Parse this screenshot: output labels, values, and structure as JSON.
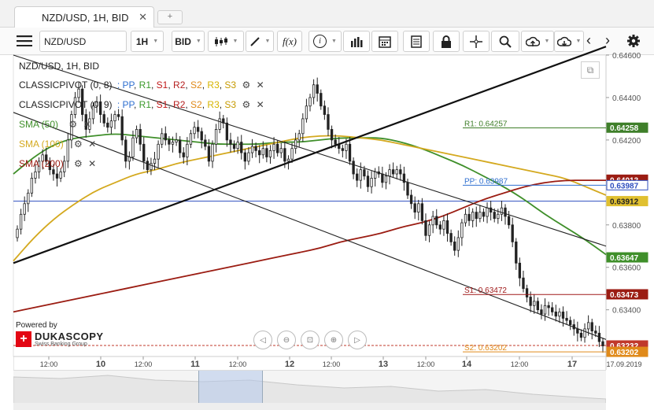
{
  "tab": {
    "title": "NZD/USD, 1H, BID",
    "close": "✕",
    "add": "+"
  },
  "toolbar": {
    "instrument": "NZD/USD",
    "period": "1H",
    "side": "BID",
    "fx_label": "f(x)",
    "info_label": "i"
  },
  "legend": {
    "title": "NZD/USD, 1H, BID",
    "pivots": [
      {
        "name": "CLASSICPIVOT (0, 8)",
        "sep": ":",
        "levels": [
          "PP",
          "R1",
          "S1",
          "R2",
          "S2",
          "R3",
          "S3"
        ]
      },
      {
        "name": "CLASSICPIVOT (0, 9)",
        "sep": ":",
        "levels": [
          "PP",
          "R1",
          "S1",
          "R2",
          "S2",
          "R3",
          "S3"
        ]
      }
    ],
    "smas": [
      {
        "name": "SMA (50)",
        "color": "#3f8f2a"
      },
      {
        "name": "SMA (100)",
        "color": "#d4a91f"
      },
      {
        "name": "SMA (200)",
        "color": "#9b1c12"
      }
    ],
    "level_colors": [
      "#2f6fd0",
      "#3a9a2a",
      "#c01a1a",
      "#b52020",
      "#e08a1a",
      "#d6b400",
      "#c69a00"
    ]
  },
  "branding": {
    "powered_by": "Powered by",
    "name": "DUKASCOPY",
    "sub": "Swiss Banking Group"
  },
  "chart_data": {
    "type": "candlestick",
    "instrument": "NZD/USD",
    "timeframe": "1H",
    "ylim": [
      0.6318,
      0.646
    ],
    "y_ticks": [
      "0.64600",
      "0.64400",
      "0.64200",
      "0.63800",
      "0.63600",
      "0.63400"
    ],
    "x_ticks": [
      "12:00",
      "10",
      "12:00",
      "11",
      "12:00",
      "12",
      "12:00",
      "13",
      "12:00",
      "14",
      "12:00",
      "17",
      "17.09.2019"
    ],
    "closes": [
      0.6378,
      0.6385,
      0.639,
      0.6395,
      0.6402,
      0.6405,
      0.641,
      0.6413,
      0.641,
      0.6406,
      0.6404,
      0.6402,
      0.6405,
      0.641,
      0.642,
      0.6432,
      0.644,
      0.6444,
      0.6432,
      0.6425,
      0.643,
      0.6436,
      0.6438,
      0.6432,
      0.6428,
      0.6426,
      0.6429,
      0.6432,
      0.6431,
      0.642,
      0.641,
      0.6412,
      0.6421,
      0.6425,
      0.6418,
      0.641,
      0.6406,
      0.6409,
      0.6411,
      0.6418,
      0.6423,
      0.642,
      0.6418,
      0.6419,
      0.642,
      0.6414,
      0.6412,
      0.6418,
      0.6423,
      0.6426,
      0.6424,
      0.642,
      0.6417,
      0.641,
      0.6418,
      0.6425,
      0.643,
      0.6428,
      0.642,
      0.6418,
      0.6416,
      0.6419,
      0.6414,
      0.641,
      0.6414,
      0.6417,
      0.6415,
      0.6413,
      0.6416,
      0.6412,
      0.6415,
      0.6418,
      0.6414,
      0.6416,
      0.641,
      0.6411,
      0.6416,
      0.642,
      0.6423,
      0.643,
      0.6436,
      0.644,
      0.6446,
      0.6442,
      0.6436,
      0.6432,
      0.6425,
      0.642,
      0.6418,
      0.6416,
      0.6415,
      0.6418,
      0.641,
      0.6404,
      0.6401,
      0.6406,
      0.6403,
      0.6398,
      0.6402,
      0.6405,
      0.6404,
      0.64,
      0.6403,
      0.6406,
      0.6404,
      0.6406,
      0.6404,
      0.64,
      0.6394,
      0.639,
      0.6386,
      0.639,
      0.6382,
      0.6375,
      0.638,
      0.6384,
      0.638,
      0.6378,
      0.6382,
      0.6376,
      0.6372,
      0.6368,
      0.6374,
      0.6381,
      0.6385,
      0.6382,
      0.6386,
      0.6383,
      0.6386,
      0.6384,
      0.6388,
      0.6386,
      0.6383,
      0.6385,
      0.6388,
      0.6384,
      0.638,
      0.6372,
      0.6362,
      0.6355,
      0.635,
      0.6346,
      0.6342,
      0.6344,
      0.634,
      0.6338,
      0.6342,
      0.6341,
      0.6339,
      0.6337,
      0.6339,
      0.6336,
      0.6335,
      0.6333,
      0.6331,
      0.6329,
      0.6327,
      0.6331,
      0.6334,
      0.633,
      0.6329,
      0.6325,
      0.6323
    ],
    "series": [
      {
        "name": "SMA (50)",
        "values": [
          0.6404,
          0.6412,
          0.6418,
          0.6421,
          0.6422,
          0.6423,
          0.6422,
          0.6421,
          0.642,
          0.6419,
          0.6418,
          0.6418,
          0.6418,
          0.6419,
          0.6419,
          0.642,
          0.6421,
          0.6421,
          0.6421,
          0.6419,
          0.6416,
          0.6412,
          0.6408,
          0.6403,
          0.6398,
          0.6392,
          0.6385,
          0.6379,
          0.6373,
          0.6366
        ]
      },
      {
        "name": "SMA (100)",
        "values": [
          0.6363,
          0.6374,
          0.6383,
          0.639,
          0.6396,
          0.64,
          0.6404,
          0.6406,
          0.6409,
          0.6411,
          0.6413,
          0.6415,
          0.6417,
          0.6419,
          0.6421,
          0.6422,
          0.6422,
          0.6421,
          0.642,
          0.6418,
          0.6416,
          0.6414,
          0.6412,
          0.641,
          0.6408,
          0.6406,
          0.6404,
          0.6402,
          0.6398,
          0.6394
        ]
      },
      {
        "name": "SMA (200)",
        "values": [
          0.6339,
          0.6341,
          0.6343,
          0.6345,
          0.6347,
          0.6349,
          0.6351,
          0.6353,
          0.6355,
          0.6357,
          0.6359,
          0.6361,
          0.6363,
          0.6365,
          0.6367,
          0.6369,
          0.6372,
          0.6374,
          0.6376,
          0.6379,
          0.6381,
          0.6384,
          0.6388,
          0.6392,
          0.6395,
          0.6398,
          0.64,
          0.6401,
          0.6401,
          0.6401
        ]
      }
    ],
    "trendlines": [
      {
        "name": "support",
        "from": 0.6362,
        "to": 0.6464
      },
      {
        "name": "channel-top",
        "from": 0.646,
        "to": 0.637
      },
      {
        "name": "channel-bottom",
        "from": 0.6433,
        "to": 0.6326
      }
    ],
    "levels": [
      {
        "label": "R1: 0.64257",
        "value": 0.64257,
        "color": "#3f7f2a"
      },
      {
        "label": "PP: 0.63987",
        "value": 0.63987,
        "color": "#2f6fd0"
      },
      {
        "label": "S1: 0.63472",
        "value": 0.63472,
        "color": "#a01a1a"
      },
      {
        "label": "S2: 0.63202",
        "value": 0.63202,
        "color": "#e08a1a"
      }
    ],
    "price_lines": [
      {
        "value": 0.63912,
        "color": "#2f4fbf"
      },
      {
        "value": 0.63232,
        "color": "#c0392b",
        "dashed": true
      }
    ],
    "badges": [
      {
        "text": "0.64258",
        "value": 0.64258,
        "bg": "#3f7f2a",
        "fg": "#ffffff"
      },
      {
        "text": "0.64013",
        "value": 0.64013,
        "bg": "#9b1c12",
        "fg": "#ffffff"
      },
      {
        "text": "0.63987",
        "value": 0.63987,
        "bg": "#ffffff",
        "fg": "#2f4fbf"
      },
      {
        "text": "0.63912",
        "value": 0.63912,
        "bg": "#e0c030",
        "fg": "#222222"
      },
      {
        "text": "0.63647",
        "value": 0.63647,
        "bg": "#3f8f2a",
        "fg": "#ffffff"
      },
      {
        "text": "0.63473",
        "value": 0.63473,
        "bg": "#9b1c12",
        "fg": "#ffffff"
      },
      {
        "text": "0.63232",
        "value": 0.63232,
        "bg": "#c0392b",
        "fg": "#ffffff"
      },
      {
        "text": "0.63202",
        "value": 0.63202,
        "bg": "#e08a1a",
        "fg": "#ffffff"
      }
    ]
  }
}
